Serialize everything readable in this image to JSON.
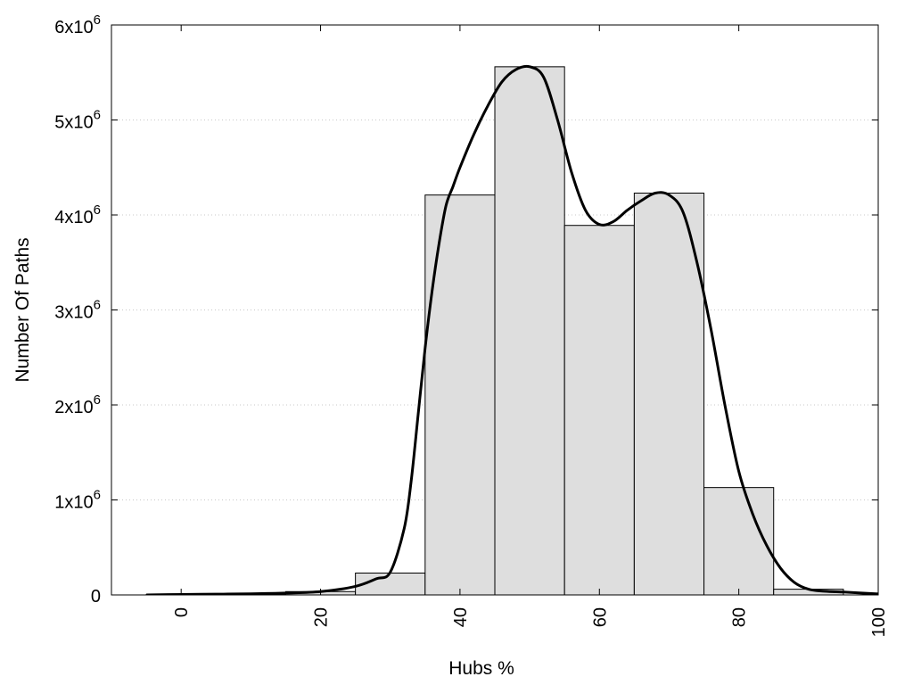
{
  "chart_data": {
    "type": "bar",
    "xlabel": "Hubs %",
    "ylabel": "Number Of Paths",
    "xlim": [
      -10,
      100
    ],
    "ylim": [
      0,
      6000000
    ],
    "grid": "horizontal dotted",
    "x_ticks": [
      {
        "value": 0,
        "label": "0"
      },
      {
        "value": 20,
        "label": "20"
      },
      {
        "value": 40,
        "label": "40"
      },
      {
        "value": 60,
        "label": "60"
      },
      {
        "value": 80,
        "label": "80"
      },
      {
        "value": 100,
        "label": "100"
      }
    ],
    "y_ticks": [
      {
        "value": 0,
        "base": "0",
        "exp": ""
      },
      {
        "value": 1000000,
        "base": "1x10",
        "exp": "6"
      },
      {
        "value": 2000000,
        "base": "2x10",
        "exp": "6"
      },
      {
        "value": 3000000,
        "base": "3x10",
        "exp": "6"
      },
      {
        "value": 4000000,
        "base": "4x10",
        "exp": "6"
      },
      {
        "value": 5000000,
        "base": "5x10",
        "exp": "6"
      },
      {
        "value": 6000000,
        "base": "6x10",
        "exp": "6"
      }
    ],
    "bin_width": 10,
    "bins": [
      0,
      10,
      20,
      30,
      40,
      50,
      60,
      70,
      80,
      90
    ],
    "values": [
      5000,
      10000,
      35000,
      230000,
      4210000,
      5560000,
      3890000,
      4230000,
      1130000,
      60000
    ],
    "bar_color": "#dedede",
    "curve": {
      "x": [
        -5,
        0,
        5,
        10,
        15,
        20,
        25,
        28,
        30,
        32,
        33,
        34,
        35,
        36,
        37,
        38,
        39,
        40,
        42,
        44,
        46,
        48,
        50,
        52,
        54,
        56,
        58,
        60,
        62,
        64,
        66,
        68,
        70,
        72,
        74,
        76,
        78,
        80,
        82,
        84,
        86,
        88,
        90,
        92,
        95,
        100
      ],
      "y": [
        0,
        5000,
        8000,
        12000,
        20000,
        35000,
        90000,
        170000,
        240000,
        700000,
        1200000,
        1900000,
        2600000,
        3200000,
        3700000,
        4100000,
        4300000,
        4500000,
        4850000,
        5150000,
        5400000,
        5530000,
        5560000,
        5450000,
        5000000,
        4450000,
        4050000,
        3900000,
        3930000,
        4050000,
        4150000,
        4230000,
        4210000,
        4030000,
        3500000,
        2800000,
        2000000,
        1300000,
        850000,
        520000,
        280000,
        130000,
        60000,
        40000,
        30000,
        10000
      ]
    },
    "curve_color": "#000000"
  }
}
